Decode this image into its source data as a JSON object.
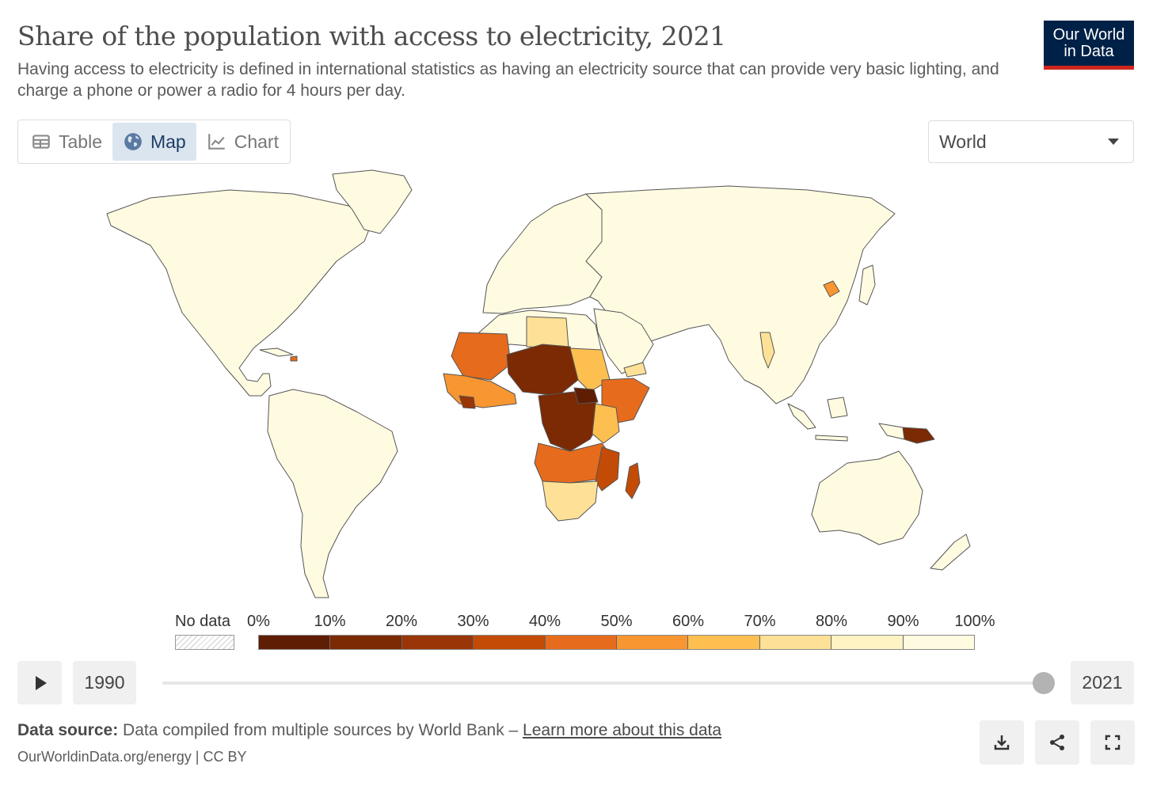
{
  "header": {
    "title": "Share of the population with access to electricity, 2021",
    "subtitle": "Having access to electricity is defined in international statistics as having an electricity source that can provide very basic lighting, and charge a phone or power a radio for 4 hours per day."
  },
  "logo": {
    "line1": "Our World",
    "line2": "in Data"
  },
  "tabs": [
    {
      "label": "Table",
      "icon": "table-icon",
      "active": false
    },
    {
      "label": "Map",
      "icon": "globe-icon",
      "active": true
    },
    {
      "label": "Chart",
      "icon": "line-chart-icon",
      "active": false
    }
  ],
  "region_select": {
    "value": "World"
  },
  "legend": {
    "no_data_label": "No data",
    "ticks": [
      "0%",
      "10%",
      "20%",
      "30%",
      "40%",
      "50%",
      "60%",
      "70%",
      "80%",
      "90%",
      "100%"
    ],
    "bins": [
      {
        "range": [
          0,
          10
        ],
        "color": "#5f1d03"
      },
      {
        "range": [
          10,
          20
        ],
        "color": "#7b2a04"
      },
      {
        "range": [
          20,
          30
        ],
        "color": "#993507"
      },
      {
        "range": [
          30,
          40
        ],
        "color": "#c34b06"
      },
      {
        "range": [
          40,
          50
        ],
        "color": "#e76b1c"
      },
      {
        "range": [
          50,
          60
        ],
        "color": "#f89631"
      },
      {
        "range": [
          60,
          70
        ],
        "color": "#fdbf50"
      },
      {
        "range": [
          70,
          80
        ],
        "color": "#fee196"
      },
      {
        "range": [
          80,
          90
        ],
        "color": "#fff3c4"
      },
      {
        "range": [
          90,
          100
        ],
        "color": "#fffbe1"
      }
    ]
  },
  "timeline": {
    "start_year": "1990",
    "end_year": "2021",
    "selected_year": 2021
  },
  "footer": {
    "source_prefix": "Data source:",
    "source_text": " Data compiled from multiple sources by World Bank – ",
    "learn_more": "Learn more about this data",
    "license": "OurWorldinData.org/energy | CC BY"
  },
  "actions": [
    {
      "icon": "download-icon"
    },
    {
      "icon": "share-icon"
    },
    {
      "icon": "fullscreen-icon"
    }
  ],
  "colors": {
    "high_access": "#fffbe1",
    "ocean": "#ffffff",
    "border": "#555555"
  }
}
